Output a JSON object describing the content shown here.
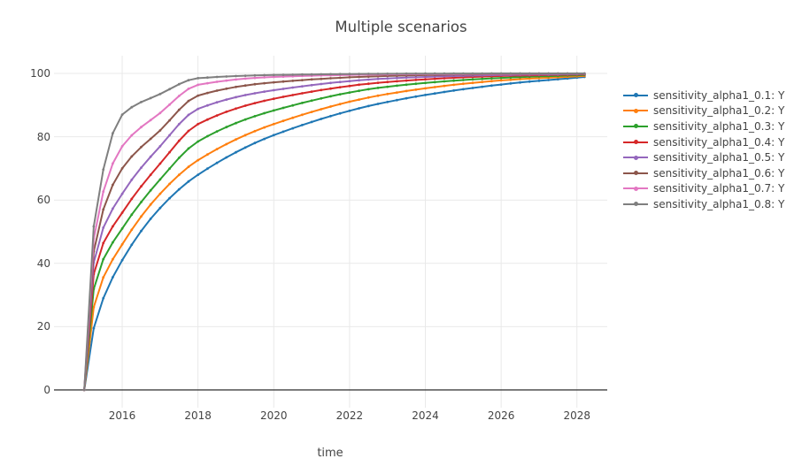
{
  "chart_data": {
    "type": "line",
    "title": "Multiple scenarios",
    "xlabel": "time",
    "ylabel": "",
    "grid": true,
    "legend_position": "right",
    "x_range": [
      2014.2,
      2028.8
    ],
    "y_range": [
      -5.6,
      105.6
    ],
    "xticks": [
      2016,
      2018,
      2020,
      2022,
      2024,
      2026,
      2028
    ],
    "yticks": [
      0,
      20,
      40,
      60,
      80,
      100
    ],
    "colors": {
      "grid": "#e9e9e9",
      "zeroline": "#404040",
      "text": "#444444"
    },
    "series": [
      {
        "name": "sensitivity_alpha1_0.1: Y",
        "color": "#1f77b4",
        "x": [
          2015,
          2015.3,
          2016,
          2017,
          2018,
          2020,
          2023,
          2026,
          2028.2
        ],
        "y": [
          0,
          22,
          41,
          57.5,
          68,
          80.5,
          91,
          96.5,
          98.9
        ]
      },
      {
        "name": "sensitivity_alpha1_0.2: Y",
        "color": "#ff7f0e",
        "x": [
          2015,
          2015.3,
          2016,
          2017,
          2018,
          2020,
          2023,
          2026,
          2028.2
        ],
        "y": [
          0,
          29,
          46,
          62,
          72.6,
          84,
          93.5,
          97.8,
          99.2
        ]
      },
      {
        "name": "sensitivity_alpha1_0.3: Y",
        "color": "#2ca02c",
        "x": [
          2015,
          2015.3,
          2016,
          2017,
          2018,
          2020,
          2023,
          2026,
          2028.2
        ],
        "y": [
          0,
          35,
          51,
          66.5,
          78.5,
          88.3,
          95.8,
          98.6,
          99.5
        ]
      },
      {
        "name": "sensitivity_alpha1_0.4: Y",
        "color": "#d62728",
        "x": [
          2015,
          2015.3,
          2016,
          2017,
          2018,
          2020,
          2023,
          2026,
          2028.2
        ],
        "y": [
          0,
          40,
          56,
          71.5,
          84,
          92,
          97.3,
          99.2,
          99.7
        ]
      },
      {
        "name": "sensitivity_alpha1_0.5: Y",
        "color": "#9467bd",
        "x": [
          2015,
          2015.3,
          2016,
          2017,
          2018,
          2020,
          2023,
          2026,
          2028.2
        ],
        "y": [
          0,
          44,
          62,
          77,
          88.8,
          94.7,
          98.4,
          99.5,
          99.8
        ]
      },
      {
        "name": "sensitivity_alpha1_0.6: Y",
        "color": "#8c564b",
        "x": [
          2015,
          2015.3,
          2016,
          2017,
          2018,
          2020,
          2023,
          2026,
          2028.2
        ],
        "y": [
          0,
          48,
          70,
          82,
          93,
          97.2,
          99.2,
          99.8,
          99.9
        ]
      },
      {
        "name": "sensitivity_alpha1_0.7: Y",
        "color": "#e377c2",
        "x": [
          2015,
          2015.3,
          2016,
          2017,
          2018,
          2020,
          2023,
          2026,
          2028.2
        ],
        "y": [
          0,
          52.5,
          77,
          87.5,
          96.4,
          98.9,
          99.7,
          99.9,
          100
        ]
      },
      {
        "name": "sensitivity_alpha1_0.8: Y",
        "color": "#7f7f7f",
        "x": [
          2015,
          2015.3,
          2016,
          2017,
          2018,
          2020,
          2023,
          2026,
          2028.2
        ],
        "y": [
          0,
          57,
          87,
          93.5,
          98.5,
          99.5,
          99.9,
          100,
          100
        ]
      }
    ]
  }
}
